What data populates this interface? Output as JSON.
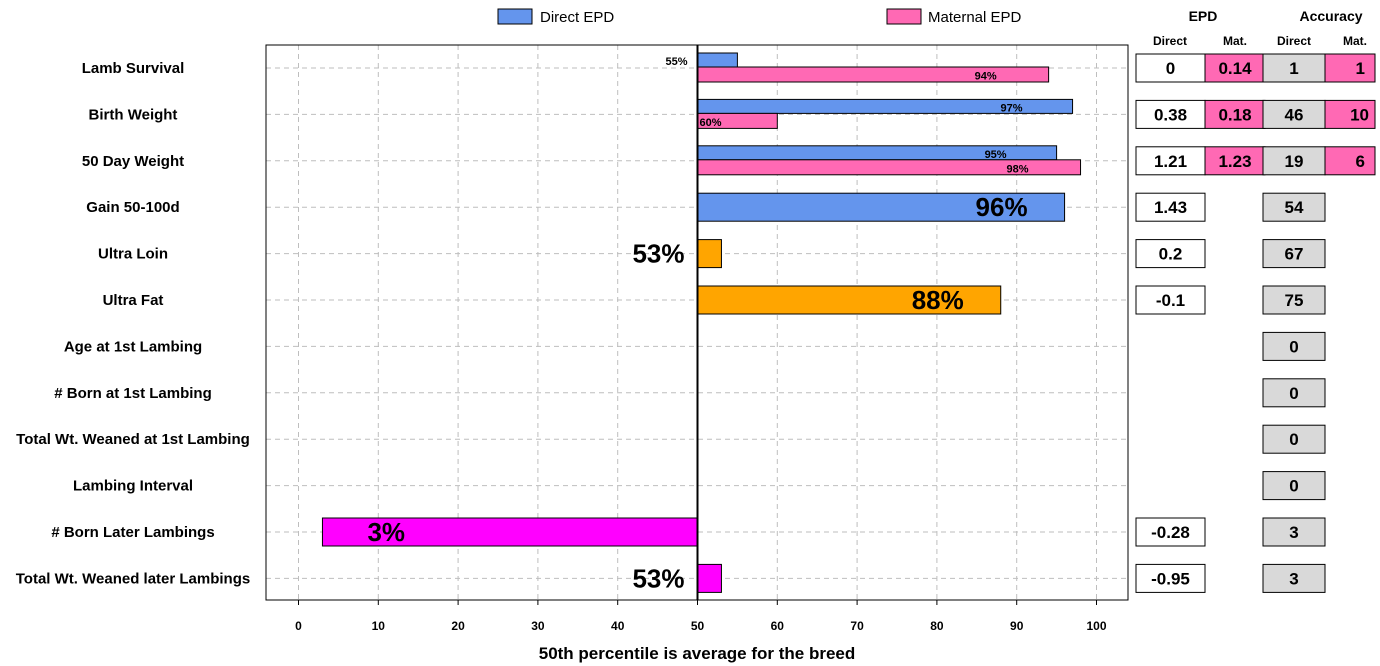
{
  "legend": {
    "direct_label": "Direct EPD",
    "maternal_label": "Maternal EPD"
  },
  "colors": {
    "direct": "#6495ED",
    "maternal": "#FF69B4",
    "orange": "#FFA500",
    "magenta": "#FF00FF",
    "accuracy_bg": "#D9D9D9",
    "grid": "#BEBEBE"
  },
  "table_headers": {
    "epd": "EPD",
    "accuracy": "Accuracy",
    "direct": "Direct",
    "mat": "Mat.",
    "acc_direct": "Direct",
    "acc_mat": "Mat."
  },
  "chart_data": {
    "type": "bar",
    "orientation": "horizontal",
    "xlabel": "50th percentile is average for the breed",
    "xlim": [
      0,
      100
    ],
    "xticks": [
      "0",
      "10",
      "20",
      "30",
      "40",
      "50",
      "60",
      "70",
      "80",
      "90",
      "100"
    ],
    "baseline": 50,
    "grid": true,
    "legend_position": "top",
    "traits": [
      {
        "label": "Lamb Survival",
        "direct": 55,
        "direct_label": "55%",
        "maternal": 94,
        "maternal_label": "94%",
        "epd_direct": "0",
        "epd_mat": "0.14",
        "acc_direct": "1",
        "acc_mat": "1"
      },
      {
        "label": "Birth Weight",
        "direct": 97,
        "direct_label": "97%",
        "maternal": 60,
        "maternal_label": "60%",
        "epd_direct": "0.38",
        "epd_mat": "0.18",
        "acc_direct": "46",
        "acc_mat": "10"
      },
      {
        "label": "50 Day Weight",
        "direct": 95,
        "direct_label": "95%",
        "maternal": 98,
        "maternal_label": "98%",
        "epd_direct": "1.21",
        "epd_mat": "1.23",
        "acc_direct": "19",
        "acc_mat": "6"
      },
      {
        "label": "Gain 50-100d",
        "single": 96,
        "single_label": "96%",
        "color": "direct",
        "epd_direct": "1.43",
        "acc_direct": "54"
      },
      {
        "label": "Ultra Loin",
        "single": 53,
        "single_label": "53%",
        "color": "orange",
        "epd_direct": "0.2",
        "acc_direct": "67"
      },
      {
        "label": "Ultra Fat",
        "single": 88,
        "single_label": "88%",
        "color": "orange",
        "epd_direct": "-0.1",
        "acc_direct": "75"
      },
      {
        "label": "Age at 1st Lambing",
        "acc_direct": "0"
      },
      {
        "label": "# Born at 1st Lambing",
        "acc_direct": "0"
      },
      {
        "label": "Total Wt. Weaned at 1st Lambing",
        "acc_direct": "0"
      },
      {
        "label": "Lambing Interval",
        "acc_direct": "0"
      },
      {
        "label": "# Born Later Lambings",
        "single": 3,
        "single_label": "3%",
        "color": "magenta",
        "epd_direct": "-0.28",
        "acc_direct": "3"
      },
      {
        "label": "Total Wt. Weaned later Lambings",
        "single": 53,
        "single_label": "53%",
        "color": "magenta",
        "epd_direct": "-0.95",
        "acc_direct": "3"
      }
    ]
  }
}
